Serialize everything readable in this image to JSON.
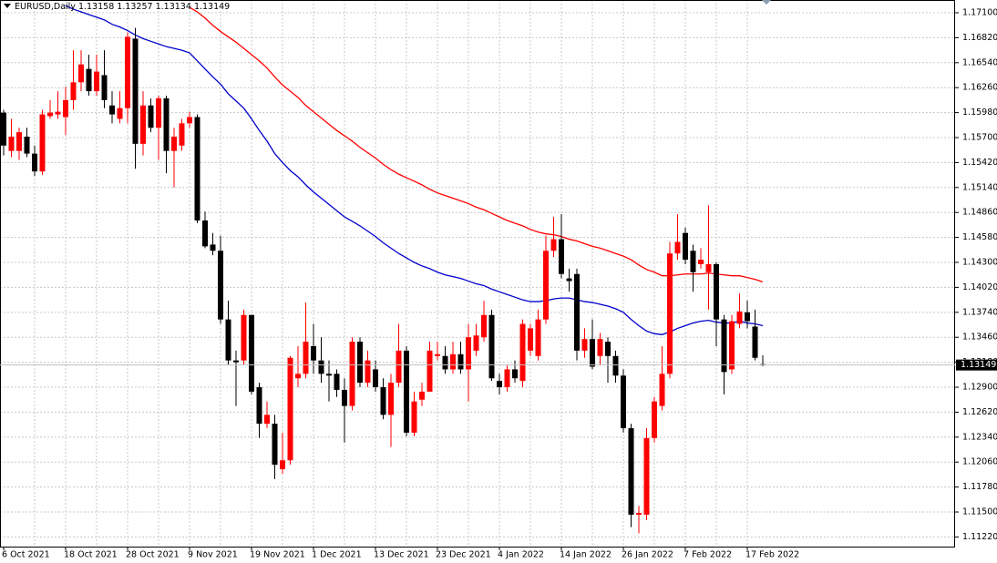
{
  "chart_data": {
    "type": "candlestick",
    "symbol": "EURUSD,Daily",
    "up_color": "#ff0000",
    "down_color": "#000000",
    "grid": true,
    "ylim": [
      1.11112,
      1.17243
    ],
    "yticks": [
      {
        "value": 1.171,
        "label": "1.17100"
      },
      {
        "value": 1.1682,
        "label": "1.16820"
      },
      {
        "value": 1.1654,
        "label": "1.16540"
      },
      {
        "value": 1.1626,
        "label": "1.16260"
      },
      {
        "value": 1.1598,
        "label": "1.15980"
      },
      {
        "value": 1.157,
        "label": "1.15700"
      },
      {
        "value": 1.1542,
        "label": "1.15420"
      },
      {
        "value": 1.1514,
        "label": "1.15140"
      },
      {
        "value": 1.1486,
        "label": "1.14860"
      },
      {
        "value": 1.1458,
        "label": "1.14580"
      },
      {
        "value": 1.143,
        "label": "1.14300"
      },
      {
        "value": 1.1402,
        "label": "1.14020"
      },
      {
        "value": 1.1374,
        "label": "1.13740"
      },
      {
        "value": 1.1346,
        "label": "1.13460"
      },
      {
        "value": 1.1318,
        "label": "1.13180"
      },
      {
        "value": 1.129,
        "label": "1.12900"
      },
      {
        "value": 1.1262,
        "label": "1.12620"
      },
      {
        "value": 1.1234,
        "label": "1.12340"
      },
      {
        "value": 1.1206,
        "label": "1.12060"
      },
      {
        "value": 1.1178,
        "label": "1.11780"
      },
      {
        "value": 1.115,
        "label": "1.11500"
      },
      {
        "value": 1.1122,
        "label": "1.11220"
      }
    ],
    "categories": [
      "6 Oct 2021",
      null,
      null,
      null,
      null,
      null,
      null,
      null,
      "18 Oct 2021",
      null,
      null,
      null,
      null,
      null,
      null,
      null,
      "28 Oct 2021",
      null,
      null,
      null,
      null,
      null,
      null,
      null,
      "9 Nov 2021",
      null,
      null,
      null,
      null,
      null,
      null,
      null,
      "19 Nov 2021",
      null,
      null,
      null,
      null,
      null,
      null,
      null,
      "1 Dec 2021",
      null,
      null,
      null,
      null,
      null,
      null,
      null,
      "13 Dec 2021",
      null,
      null,
      null,
      null,
      null,
      null,
      null,
      "23 Dec 2021",
      null,
      null,
      null,
      null,
      null,
      null,
      null,
      "4 Jan 2022",
      null,
      null,
      null,
      null,
      null,
      null,
      null,
      "14 Jan 2022",
      null,
      null,
      null,
      null,
      null,
      null,
      null,
      "26 Jan 2022",
      null,
      null,
      null,
      null,
      null,
      null,
      null,
      "7 Feb 2022",
      null,
      null,
      null,
      null,
      null,
      null,
      null,
      "17 Feb 2022",
      null,
      null
    ],
    "open": [
      1.1598,
      1.1555,
      1.1555,
      1.1571,
      1.1552,
      1.1532,
      1.1594,
      1.1596,
      1.1593,
      1.1612,
      1.1632,
      1.1647,
      1.1622,
      1.164,
      1.1606,
      1.1591,
      1.1603,
      1.1681,
      1.1563,
      1.1606,
      1.1581,
      1.1614,
      1.1555,
      1.1561,
      1.1586,
      1.1593,
      1.1477,
      1.145,
      1.1443,
      1.1366,
      1.132,
      1.132,
      1.1371,
      1.129,
      1.1249,
      1.1249,
      1.1198,
      1.1208,
      1.13,
      1.1305,
      1.1336,
      1.132,
      1.1305,
      1.1305,
      1.1287,
      1.1269,
      1.1341,
      1.1295,
      1.131,
      1.129,
      1.1259,
      1.1295,
      1.1331,
      1.1239,
      1.1276,
      1.1285,
      1.1325,
      1.1325,
      1.131,
      1.1327,
      1.131,
      1.1331,
      1.1346,
      1.1371,
      1.1297,
      1.129,
      1.131,
      1.1297,
      1.1331,
      1.1325,
      1.1366,
      1.1443,
      1.1456,
      1.1412,
      1.1417,
      1.1331,
      1.1344,
      1.1325,
      1.1341,
      1.1325,
      1.1303,
      1.1244,
      1.1147,
      1.1147,
      1.1233,
      1.1269,
      1.1305,
      1.144,
      1.1463,
      1.1443,
      1.1428,
      1.1419,
      1.1428,
      1.1366,
      1.131,
      1.1361,
      1.1374,
      1.1358,
      1.13158
    ],
    "high": [
      1.1601,
      1.1591,
      1.1581,
      1.1581,
      1.1561,
      1.1601,
      1.1612,
      1.1622,
      1.1627,
      1.1668,
      1.1668,
      1.1663,
      1.1663,
      1.1668,
      1.1622,
      1.1622,
      1.1688,
      1.1693,
      1.1622,
      1.1614,
      1.1617,
      1.1617,
      1.1581,
      1.1591,
      1.1599,
      1.1596,
      1.1487,
      1.1463,
      1.146,
      1.1387,
      1.1331,
      1.1377,
      1.1371,
      1.1295,
      1.1274,
      1.1259,
      1.1239,
      1.1325,
      1.1336,
      1.1385,
      1.1361,
      1.1346,
      1.132,
      1.131,
      1.13,
      1.1346,
      1.1346,
      1.1331,
      1.132,
      1.13,
      1.1305,
      1.1361,
      1.1336,
      1.1285,
      1.1295,
      1.1341,
      1.1341,
      1.1336,
      1.1341,
      1.1341,
      1.1361,
      1.1361,
      1.1387,
      1.1377,
      1.1305,
      1.1315,
      1.132,
      1.1366,
      1.1361,
      1.1377,
      1.146,
      1.1481,
      1.1484,
      1.1423,
      1.1423,
      1.1356,
      1.1366,
      1.1351,
      1.1346,
      1.1331,
      1.131,
      1.1249,
      1.1157,
      1.1244,
      1.1279,
      1.1336,
      1.1453,
      1.1484,
      1.1469,
      1.145,
      1.1446,
      1.1494,
      1.143,
      1.1371,
      1.1371,
      1.1395,
      1.1387,
      1.1377,
      1.13257
    ],
    "low": [
      1.155,
      1.1548,
      1.1545,
      1.1548,
      1.1527,
      1.1528,
      1.1591,
      1.1591,
      1.1573,
      1.1601,
      1.1622,
      1.1617,
      1.1617,
      1.1603,
      1.1586,
      1.1586,
      1.1586,
      1.1535,
      1.155,
      1.1576,
      1.1545,
      1.153,
      1.1514,
      1.1555,
      1.1581,
      1.1474,
      1.1446,
      1.1438,
      1.1361,
      1.1315,
      1.1269,
      1.1315,
      1.1282,
      1.1233,
      1.1244,
      1.1187,
      1.1193,
      1.1203,
      1.129,
      1.13,
      1.1305,
      1.1295,
      1.1274,
      1.1279,
      1.1228,
      1.1264,
      1.129,
      1.129,
      1.1285,
      1.1254,
      1.1223,
      1.129,
      1.1235,
      1.1235,
      1.1269,
      1.1285,
      1.132,
      1.1305,
      1.1305,
      1.1305,
      1.1274,
      1.1325,
      1.1341,
      1.1297,
      1.1282,
      1.1285,
      1.1295,
      1.129,
      1.1325,
      1.132,
      1.1361,
      1.1436,
      1.1412,
      1.1397,
      1.132,
      1.1323,
      1.131,
      1.1315,
      1.1295,
      1.1295,
      1.1239,
      1.1133,
      1.1126,
      1.1141,
      1.1228,
      1.1264,
      1.13,
      1.1433,
      1.1428,
      1.1397,
      1.1423,
      1.1377,
      1.1336,
      1.1282,
      1.1305,
      1.1356,
      1.1356,
      1.132,
      1.13134
    ],
    "close": [
      1.1561,
      1.1571,
      1.1576,
      1.1552,
      1.1532,
      1.1596,
      1.1598,
      1.1599,
      1.1612,
      1.1632,
      1.1652,
      1.1622,
      1.1644,
      1.1612,
      1.1596,
      1.1603,
      1.1683,
      1.1563,
      1.1606,
      1.1581,
      1.1614,
      1.1555,
      1.1571,
      1.1586,
      1.1593,
      1.1477,
      1.1448,
      1.1443,
      1.1366,
      1.132,
      1.1318,
      1.1371,
      1.1285,
      1.1249,
      1.1259,
      1.1203,
      1.1208,
      1.1323,
      1.1305,
      1.1341,
      1.132,
      1.1305,
      1.1303,
      1.1287,
      1.1269,
      1.1341,
      1.1295,
      1.132,
      1.129,
      1.1259,
      1.1295,
      1.1331,
      1.1239,
      1.1274,
      1.1285,
      1.1331,
      1.1327,
      1.131,
      1.1327,
      1.131,
      1.1346,
      1.1348,
      1.1371,
      1.13,
      1.129,
      1.131,
      1.13,
      1.1361,
      1.1356,
      1.1366,
      1.1443,
      1.1456,
      1.1417,
      1.1409,
      1.1331,
      1.1344,
      1.1313,
      1.1344,
      1.1325,
      1.1303,
      1.1244,
      1.1147,
      1.1149,
      1.1233,
      1.1274,
      1.1305,
      1.144,
      1.1453,
      1.1433,
      1.1419,
      1.1433,
      1.1428,
      1.1366,
      1.1307,
      1.1364,
      1.1375,
      1.1364,
      1.1323,
      1.13149
    ],
    "lines": [
      {
        "color": "#ff0000",
        "values": [
          null,
          null,
          null,
          null,
          null,
          null,
          null,
          null,
          null,
          null,
          null,
          null,
          null,
          null,
          null,
          null,
          null,
          null,
          null,
          null,
          null,
          null,
          null,
          null,
          1.1716,
          1.1711,
          1.1704,
          1.1696,
          1.1689,
          1.1683,
          1.1677,
          1.167,
          1.1663,
          1.1656,
          1.1648,
          1.1638,
          1.1629,
          1.1622,
          1.1615,
          1.1606,
          1.1599,
          1.1592,
          1.1585,
          1.1578,
          1.1572,
          1.1566,
          1.1559,
          1.1553,
          1.1547,
          1.154,
          1.1534,
          1.1529,
          1.1525,
          1.1521,
          1.1517,
          1.1512,
          1.1508,
          1.1505,
          1.1502,
          1.1499,
          1.1496,
          1.1492,
          1.1489,
          1.1485,
          1.1481,
          1.1477,
          1.1474,
          1.1471,
          1.1467,
          1.1464,
          1.1462,
          1.1461,
          1.1459,
          1.1456,
          1.1454,
          1.1451,
          1.1448,
          1.1446,
          1.1443,
          1.144,
          1.1437,
          1.1433,
          1.1427,
          1.1422,
          1.1419,
          1.1415,
          1.1415,
          1.1416,
          1.1417,
          1.1417,
          1.1417,
          1.1418,
          1.1417,
          1.1416,
          1.1415,
          1.1415,
          1.1413,
          1.1411,
          1.1408
        ]
      },
      {
        "color": "#0000cc",
        "values": [
          null,
          null,
          null,
          null,
          null,
          null,
          null,
          null,
          1.1718,
          1.1714,
          1.1711,
          1.1708,
          1.1705,
          1.1702,
          1.1697,
          1.1694,
          1.169,
          1.1685,
          1.1681,
          1.1678,
          1.1675,
          1.1672,
          1.167,
          1.1668,
          1.1665,
          1.1656,
          1.1647,
          1.1638,
          1.163,
          1.1619,
          1.1611,
          1.1603,
          1.1591,
          1.1578,
          1.1566,
          1.1552,
          1.1542,
          1.1533,
          1.1526,
          1.1517,
          1.1509,
          1.1502,
          1.1495,
          1.1488,
          1.1481,
          1.1476,
          1.1471,
          1.1465,
          1.1459,
          1.1452,
          1.1446,
          1.144,
          1.1435,
          1.143,
          1.1426,
          1.1423,
          1.1419,
          1.1416,
          1.1414,
          1.1412,
          1.1409,
          1.1406,
          1.1404,
          1.14,
          1.1397,
          1.1394,
          1.1391,
          1.1388,
          1.1386,
          1.1386,
          1.1387,
          1.1389,
          1.139,
          1.139,
          1.1388,
          1.1386,
          1.1385,
          1.1383,
          1.1381,
          1.1378,
          1.1374,
          1.1366,
          1.1359,
          1.1353,
          1.135,
          1.1349,
          1.1352,
          1.1356,
          1.1359,
          1.1362,
          1.1364,
          1.1365,
          1.1363,
          1.1362,
          1.1362,
          1.1364,
          1.1362,
          1.1361,
          1.1359
        ]
      }
    ]
  }
}
